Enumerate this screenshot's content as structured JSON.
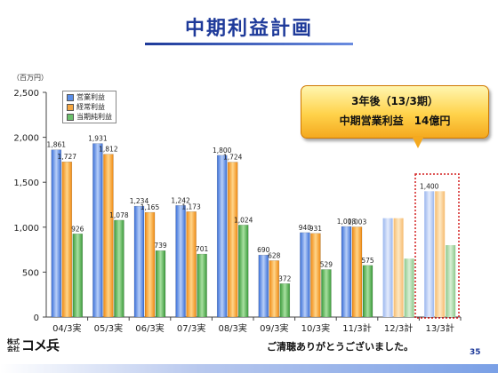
{
  "title": "中期利益計画",
  "unit_label": "（百万円）",
  "callout": {
    "line1": "3年後（13/3期）",
    "line2": "中期営業利益　14億円"
  },
  "closing": "ご清聴ありがとうございました。",
  "page_number": "35",
  "logo": {
    "kabushiki": "株式",
    "kaisha": "会社",
    "name": "コメ兵"
  },
  "colors": {
    "operating": "#5b8fe8",
    "ordinary": "#f5a742",
    "net": "#6cc06c",
    "title": "#1e3a9a"
  },
  "chart_data": {
    "type": "bar",
    "title": "中期利益計画",
    "ylabel": "（百万円）",
    "ylim": [
      0,
      2500
    ],
    "yticks": [
      0,
      500,
      1000,
      1500,
      2000,
      2500
    ],
    "yticklabels": [
      "0",
      "500",
      "1,000",
      "1,500",
      "2,000",
      "2,500"
    ],
    "grid": false,
    "legend_position": "top-left",
    "categories": [
      "04/3実",
      "05/3実",
      "06/3実",
      "07/3実",
      "08/3実",
      "09/3実",
      "10/3実",
      "11/3計",
      "12/3計",
      "13/3計"
    ],
    "series": [
      {
        "name": "営業利益",
        "values": [
          1861,
          1931,
          1234,
          1242,
          1800,
          690,
          940,
          1008,
          1100,
          1400
        ],
        "labels": [
          "1,861",
          "1,931",
          "1,234",
          "1,242",
          "1,800",
          "690",
          "940",
          "1,008",
          "",
          "1,400"
        ]
      },
      {
        "name": "経常利益",
        "values": [
          1727,
          1812,
          1165,
          1173,
          1724,
          628,
          931,
          1003,
          1100,
          1400
        ],
        "labels": [
          "1,727",
          "1,812",
          "1,165",
          "1,173",
          "1,724",
          "628",
          "931",
          "1,003",
          "",
          ""
        ]
      },
      {
        "name": "当期純利益",
        "values": [
          926,
          1078,
          739,
          701,
          1024,
          372,
          529,
          575,
          650,
          800
        ],
        "labels": [
          "926",
          "1,078",
          "739",
          "701",
          "1,024",
          "372",
          "529",
          "575",
          "",
          ""
        ]
      }
    ]
  }
}
